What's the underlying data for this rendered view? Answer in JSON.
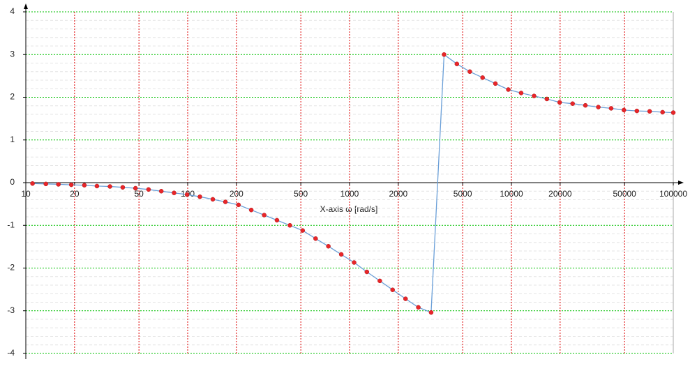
{
  "chart_data": {
    "type": "line",
    "x_label": "X-axis ω [rad/s]",
    "x": [
      11.0,
      13.3,
      15.9,
      19.1,
      23.0,
      27.5,
      33.1,
      39.7,
      47.6,
      57.3,
      68.7,
      82.4,
      99.1,
      119,
      143,
      171,
      206,
      247,
      297,
      356,
      428,
      513,
      617,
      740,
      889,
      1067,
      1279,
      1538,
      1845,
      2218,
      2661,
      3192,
      3837,
      4603,
      5534,
      6637,
      7962,
      9572,
      11482,
      13804,
      16558,
      19861,
      23878,
      28641,
      34435,
      41305,
      49545,
      59566,
      71450,
      85901,
      100000
    ],
    "values": [
      -0.02,
      -0.03,
      -0.04,
      -0.05,
      -0.06,
      -0.08,
      -0.09,
      -0.11,
      -0.13,
      -0.16,
      -0.2,
      -0.24,
      -0.28,
      -0.33,
      -0.39,
      -0.45,
      -0.52,
      -0.64,
      -0.76,
      -0.88,
      -1.0,
      -1.12,
      -1.31,
      -1.49,
      -1.68,
      -1.87,
      -2.09,
      -2.3,
      -2.51,
      -2.72,
      -2.92,
      -3.04,
      3.0,
      2.78,
      2.6,
      2.46,
      2.32,
      2.18,
      2.1,
      2.03,
      1.96,
      1.88,
      1.85,
      1.81,
      1.77,
      1.74,
      1.7,
      1.68,
      1.67,
      1.65,
      1.64
    ],
    "color": "#6a9fd8",
    "marker_color": "#e8262a",
    "x_scale": "log",
    "xlim": [
      10,
      100000
    ],
    "xticks": [
      10,
      20,
      50,
      100,
      200,
      500,
      1000,
      2000,
      5000,
      10000,
      20000,
      50000,
      100000
    ],
    "ylim": [
      -4,
      4
    ],
    "yticks": [
      -4,
      -3,
      -2,
      -1,
      0,
      1,
      2,
      3,
      4
    ],
    "grid": true,
    "x_grid_color": "#e00000",
    "y_grid_color": "#00c000"
  }
}
